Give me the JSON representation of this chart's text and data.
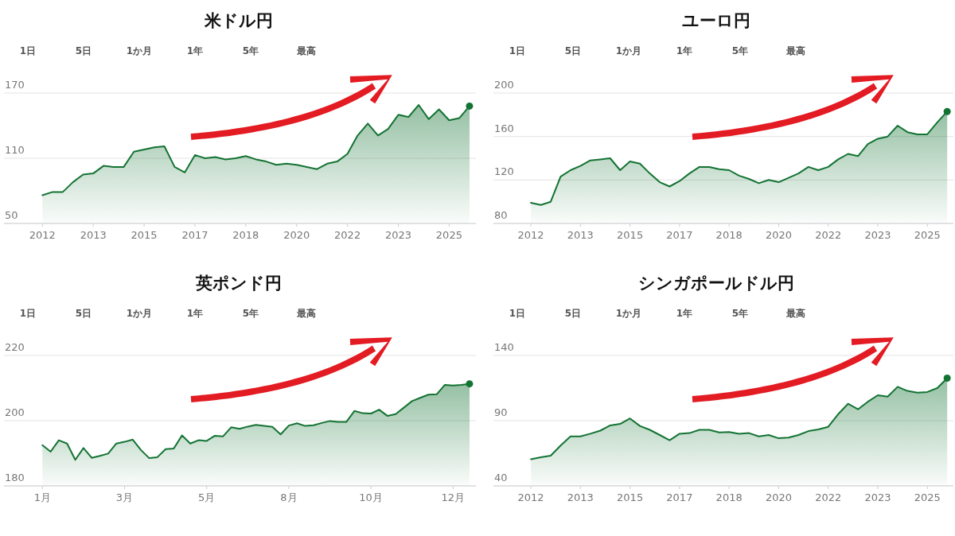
{
  "chart_data": [
    {
      "type": "area",
      "title": "米ドル円",
      "annotations": [
        "1日",
        "5日",
        "1か月",
        "1年",
        "5年",
        "最高"
      ],
      "grid": "y",
      "ylim": [
        50,
        170
      ],
      "yticks": [
        50,
        110,
        170
      ],
      "categories": [
        "2012",
        null,
        null,
        null,
        null,
        "2013",
        null,
        null,
        null,
        null,
        "2015",
        null,
        null,
        null,
        null,
        "2017",
        null,
        null,
        null,
        null,
        "2018",
        null,
        null,
        null,
        null,
        "2020",
        null,
        null,
        null,
        null,
        "2022",
        null,
        null,
        null,
        null,
        "2023",
        null,
        null,
        null,
        null,
        "2025",
        null,
        null
      ],
      "series": [
        {
          "color": "#137333",
          "values": [
            76,
            79,
            79,
            88,
            95,
            96,
            103,
            102,
            102,
            116,
            118,
            120,
            121,
            102,
            97,
            113,
            110,
            111,
            109,
            110,
            112,
            109,
            107,
            104,
            105,
            104,
            102,
            100,
            105,
            107,
            114,
            131,
            142,
            131,
            137,
            150,
            148,
            159,
            146,
            155,
            145,
            147,
            158
          ]
        }
      ]
    },
    {
      "type": "area",
      "title": "ユーロ円",
      "annotations": [
        "1日",
        "5日",
        "1か月",
        "1年",
        "5年",
        "最高"
      ],
      "grid": "y",
      "ylim": [
        80,
        200
      ],
      "yticks": [
        80,
        120,
        160,
        200
      ],
      "categories": [
        "2012",
        null,
        null,
        null,
        null,
        "2013",
        null,
        null,
        null,
        null,
        "2015",
        null,
        null,
        null,
        null,
        "2017",
        null,
        null,
        null,
        null,
        "2018",
        null,
        null,
        null,
        null,
        "2020",
        null,
        null,
        null,
        null,
        "2022",
        null,
        null,
        null,
        null,
        "2023",
        null,
        null,
        null,
        null,
        "2025",
        null,
        null
      ],
      "series": [
        {
          "color": "#137333",
          "values": [
            99,
            97,
            100,
            123,
            129,
            133,
            138,
            139,
            140,
            129,
            137,
            135,
            126,
            118,
            114,
            119,
            126,
            132,
            132,
            130,
            129,
            124,
            121,
            117,
            120,
            118,
            122,
            126,
            132,
            129,
            132,
            139,
            144,
            142,
            153,
            158,
            160,
            170,
            164,
            162,
            162,
            173,
            183
          ]
        }
      ]
    },
    {
      "type": "area",
      "title": "英ポンド円",
      "annotations": [
        "1日",
        "5日",
        "1か月",
        "1年",
        "5年",
        "最高"
      ],
      "grid": "y",
      "ylim": [
        180,
        220
      ],
      "yticks": [
        180,
        200,
        220
      ],
      "categories": [
        "1月",
        null,
        null,
        null,
        null,
        null,
        null,
        null,
        null,
        null,
        "3月",
        null,
        null,
        null,
        null,
        null,
        null,
        null,
        null,
        null,
        "5月",
        null,
        null,
        null,
        null,
        null,
        null,
        null,
        null,
        null,
        "8月",
        null,
        null,
        null,
        null,
        null,
        null,
        null,
        null,
        null,
        "10月",
        null,
        null,
        null,
        null,
        null,
        null,
        null,
        null,
        null,
        "12月",
        null,
        null
      ],
      "series": [
        {
          "color": "#137333",
          "values": [
            192.5,
            190.5,
            194,
            193,
            188,
            191.6,
            188.6,
            189.2,
            189.9,
            193,
            193.5,
            194.2,
            191,
            188.5,
            188.8,
            191.3,
            191.5,
            195.5,
            193,
            194,
            193.8,
            195.4,
            195.2,
            198,
            197.5,
            198.2,
            198.7,
            198.4,
            198.1,
            195.8,
            198.5,
            199.2,
            198.4,
            198.6,
            199.3,
            199.9,
            199.6,
            199.6,
            203,
            202.3,
            202.2,
            203.4,
            201.5,
            202,
            204,
            206,
            207,
            208,
            208.1,
            211,
            210.8,
            211,
            211.3
          ]
        }
      ]
    },
    {
      "type": "area",
      "title": "シンガポールドル円",
      "annotations": [
        "1日",
        "5日",
        "1か月",
        "1年",
        "5年",
        "最高"
      ],
      "grid": "y",
      "ylim": [
        40,
        140
      ],
      "yticks": [
        40,
        90,
        140
      ],
      "categories": [
        "2012",
        null,
        null,
        null,
        null,
        "2013",
        null,
        null,
        null,
        null,
        "2015",
        null,
        null,
        null,
        null,
        "2017",
        null,
        null,
        null,
        null,
        "2018",
        null,
        null,
        null,
        null,
        "2020",
        null,
        null,
        null,
        null,
        "2022",
        null,
        null,
        null,
        null,
        "2023",
        null,
        null,
        null,
        null,
        "2025",
        null,
        null
      ],
      "series": [
        {
          "color": "#137333",
          "values": [
            60.5,
            62,
            63.2,
            71,
            78,
            78,
            80,
            82.4,
            86.4,
            87.5,
            91.7,
            86,
            83,
            79,
            75,
            80,
            80.5,
            83,
            83,
            81,
            81.3,
            80,
            80.5,
            78,
            79,
            76.5,
            77.1,
            79,
            82,
            83.3,
            85.3,
            95,
            103,
            98.7,
            104.5,
            109.5,
            108.5,
            116,
            112.8,
            111.5,
            112,
            115,
            122.6
          ]
        }
      ]
    }
  ]
}
